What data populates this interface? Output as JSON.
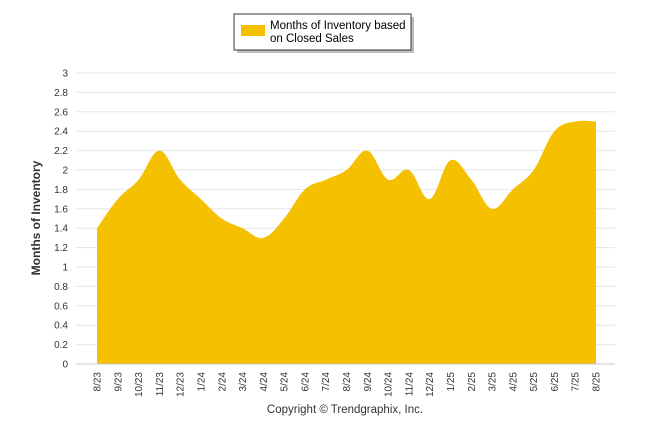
{
  "chart_data": {
    "type": "area",
    "title": "",
    "xlabel": "",
    "ylabel": "Months of Inventory",
    "ylim": [
      0,
      3
    ],
    "yticks": [
      "0",
      "0.2",
      "0.4",
      "0.6",
      "0.8",
      "1",
      "1.2",
      "1.4",
      "1.6",
      "1.8",
      "2",
      "2.2",
      "2.4",
      "2.6",
      "2.8",
      "3"
    ],
    "grid": true,
    "legend_position": "top-center",
    "color": "#f5c000",
    "categories": [
      "8/23",
      "9/23",
      "10/23",
      "11/23",
      "12/23",
      "1/24",
      "2/24",
      "3/24",
      "4/24",
      "5/24",
      "6/24",
      "7/24",
      "8/24",
      "9/24",
      "10/24",
      "11/24",
      "12/24",
      "1/25",
      "2/25",
      "3/25",
      "4/25",
      "5/25",
      "6/25",
      "7/25",
      "8/25"
    ],
    "series": [
      {
        "name": "Months of Inventory based on Closed Sales",
        "values": [
          1.4,
          1.7,
          1.9,
          2.2,
          1.9,
          1.7,
          1.5,
          1.4,
          1.3,
          1.5,
          1.8,
          1.9,
          2.0,
          2.2,
          1.9,
          2.0,
          1.7,
          2.1,
          1.9,
          1.6,
          1.8,
          2.0,
          2.4,
          2.5,
          2.5
        ]
      }
    ],
    "legend_lines": [
      "Months of Inventory based",
      "on Closed Sales"
    ]
  },
  "footer": {
    "copyright": "Copyright © Trendgraphix, Inc."
  }
}
